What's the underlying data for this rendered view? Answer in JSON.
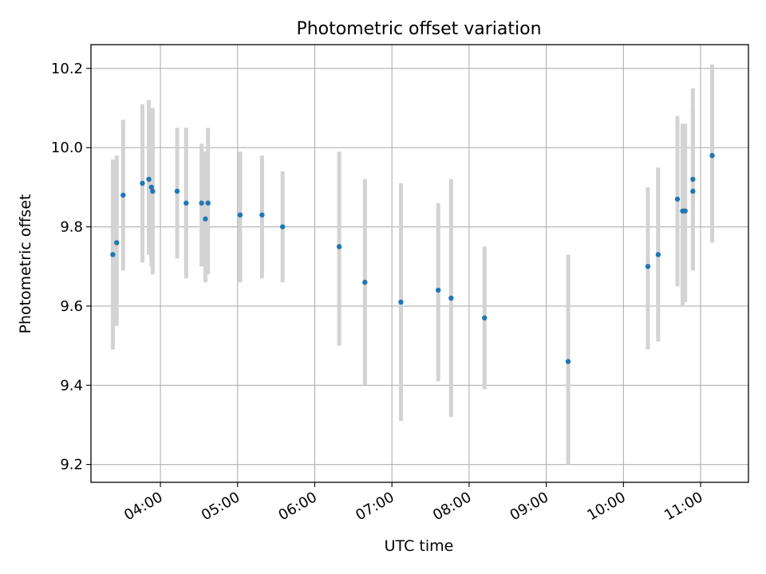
{
  "chart_data": {
    "type": "scatter",
    "title": "Photometric offset variation",
    "xlabel": "UTC time",
    "ylabel": "Photometric offset",
    "x_axis": {
      "unit": "hours UTC",
      "range": [
        3.1,
        11.62
      ],
      "ticks": [
        4,
        5,
        6,
        7,
        8,
        9,
        10,
        11
      ],
      "tick_labels": [
        "04:00",
        "05:00",
        "06:00",
        "07:00",
        "08:00",
        "09:00",
        "10:00",
        "11:00"
      ]
    },
    "y_axis": {
      "range": [
        9.155,
        10.26
      ],
      "ticks": [
        9.2,
        9.4,
        9.6,
        9.8,
        10.0,
        10.2
      ],
      "tick_labels": [
        "9.2",
        "9.4",
        "9.6",
        "9.8",
        "10.0",
        "10.2"
      ]
    },
    "grid": true,
    "colors": {
      "point": "#1f77b4",
      "errorbar": "#d3d3d3",
      "grid": "#b0b0b0"
    },
    "series": [
      {
        "points": [
          {
            "x": "03:23",
            "y": 9.73,
            "ylow": 9.49,
            "yhigh": 9.97
          },
          {
            "x": "03:26",
            "y": 9.76,
            "ylow": 9.55,
            "yhigh": 9.98
          },
          {
            "x": "03:31",
            "y": 9.88,
            "ylow": 9.69,
            "yhigh": 10.07
          },
          {
            "x": "03:46",
            "y": 9.91,
            "ylow": 9.71,
            "yhigh": 10.11
          },
          {
            "x": "03:51",
            "y": 9.92,
            "ylow": 9.73,
            "yhigh": 10.12
          },
          {
            "x": "03:53",
            "y": 9.9,
            "ylow": 9.7,
            "yhigh": 10.1
          },
          {
            "x": "03:54",
            "y": 9.89,
            "ylow": 9.68,
            "yhigh": 10.1
          },
          {
            "x": "04:13",
            "y": 9.89,
            "ylow": 9.72,
            "yhigh": 10.05
          },
          {
            "x": "04:20",
            "y": 9.86,
            "ylow": 9.67,
            "yhigh": 10.05
          },
          {
            "x": "04:32",
            "y": 9.86,
            "ylow": 9.7,
            "yhigh": 10.01
          },
          {
            "x": "04:35",
            "y": 9.82,
            "ylow": 9.66,
            "yhigh": 9.99
          },
          {
            "x": "04:37",
            "y": 9.86,
            "ylow": 9.68,
            "yhigh": 10.05
          },
          {
            "x": "05:02",
            "y": 9.83,
            "ylow": 9.66,
            "yhigh": 9.99
          },
          {
            "x": "05:19",
            "y": 9.83,
            "ylow": 9.67,
            "yhigh": 9.98
          },
          {
            "x": "05:35",
            "y": 9.8,
            "ylow": 9.66,
            "yhigh": 9.94
          },
          {
            "x": "06:19",
            "y": 9.75,
            "ylow": 9.5,
            "yhigh": 9.99
          },
          {
            "x": "06:39",
            "y": 9.66,
            "ylow": 9.4,
            "yhigh": 9.92
          },
          {
            "x": "07:07",
            "y": 9.61,
            "ylow": 9.31,
            "yhigh": 9.91
          },
          {
            "x": "07:36",
            "y": 9.64,
            "ylow": 9.41,
            "yhigh": 9.86
          },
          {
            "x": "07:46",
            "y": 9.62,
            "ylow": 9.32,
            "yhigh": 9.92
          },
          {
            "x": "08:12",
            "y": 9.57,
            "ylow": 9.39,
            "yhigh": 9.75
          },
          {
            "x": "09:17",
            "y": 9.46,
            "ylow": 9.2,
            "yhigh": 9.73
          },
          {
            "x": "10:19",
            "y": 9.7,
            "ylow": 9.49,
            "yhigh": 9.9
          },
          {
            "x": "10:27",
            "y": 9.73,
            "ylow": 9.51,
            "yhigh": 9.95
          },
          {
            "x": "10:42",
            "y": 9.87,
            "ylow": 9.65,
            "yhigh": 10.08
          },
          {
            "x": "10:46",
            "y": 9.84,
            "ylow": 9.6,
            "yhigh": 10.06
          },
          {
            "x": "10:48",
            "y": 9.84,
            "ylow": 9.61,
            "yhigh": 10.06
          },
          {
            "x": "10:54",
            "y": 9.89,
            "ylow": 9.69,
            "yhigh": 10.1
          },
          {
            "x": "10:54",
            "y": 9.92,
            "ylow": 9.69,
            "yhigh": 10.15
          },
          {
            "x": "11:09",
            "y": 9.98,
            "ylow": 9.76,
            "yhigh": 10.21
          }
        ]
      }
    ]
  }
}
